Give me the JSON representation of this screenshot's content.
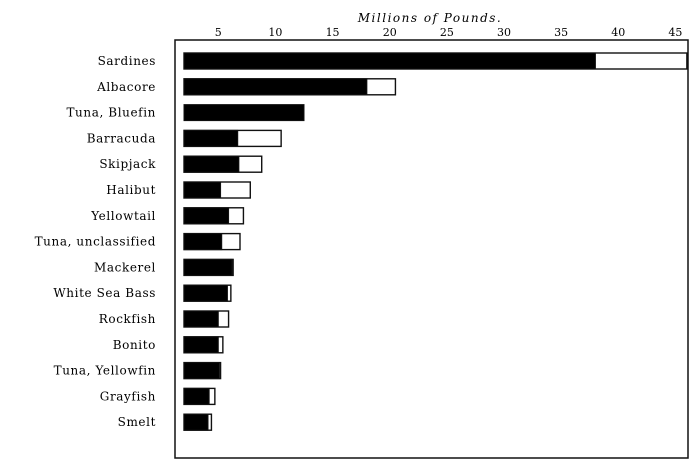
{
  "chart_data": {
    "type": "bar",
    "orientation": "horizontal",
    "stacked": true,
    "title": "",
    "xlabel": "Millions of Pounds.",
    "ylabel": "",
    "xlim": [
      2,
      45
    ],
    "xticks": [
      5,
      10,
      15,
      20,
      25,
      30,
      35,
      40,
      45
    ],
    "grid": false,
    "legend": "none",
    "categories": [
      "Sardines",
      "Albacore",
      "Tuna, Bluefin",
      "Barracuda",
      "Skipjack",
      "Halibut",
      "Yellowtail",
      "Tuna, unclassified",
      "Mackerel",
      "White Sea Bass",
      "Rockfish",
      "Bonito",
      "Tuna, Yellowfin",
      "Grayfish",
      "Smelt"
    ],
    "series": [
      {
        "color": "#000000",
        "values": [
          36.0,
          16.0,
          10.5,
          4.7,
          4.8,
          3.2,
          3.9,
          3.3,
          4.2,
          3.8,
          3.0,
          3.0,
          3.1,
          2.2,
          2.1
        ]
      },
      {
        "color": "#ffffff",
        "values": [
          8.0,
          2.5,
          0.0,
          3.8,
          2.0,
          2.6,
          1.3,
          1.6,
          0.1,
          0.3,
          0.9,
          0.4,
          0.1,
          0.5,
          0.3
        ]
      }
    ]
  }
}
